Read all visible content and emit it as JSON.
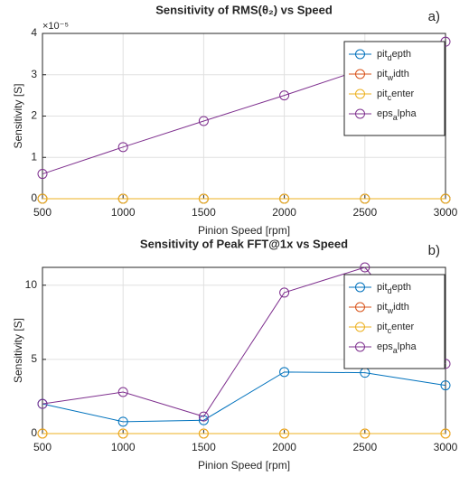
{
  "chart_data": [
    {
      "type": "line",
      "title": "Sensitivity of RMS(θ₂) vs Speed",
      "corner_label": "a)",
      "x_label": "Pinion Speed [rpm]",
      "y_label": "Sensitivity [S]",
      "y_exponent": "×10⁻⁵",
      "x": [
        500,
        1000,
        1500,
        2000,
        2500,
        3000
      ],
      "xlim": [
        500,
        3000
      ],
      "xticks": [
        500,
        1000,
        1500,
        2000,
        2500,
        3000
      ],
      "ylim": [
        0,
        4
      ],
      "yticks": [
        0,
        1,
        2,
        3,
        4
      ],
      "grid": true,
      "legend": "northeast",
      "series": [
        {
          "name": "pit_depth",
          "color": "#0072bd",
          "values": [
            0,
            0,
            0,
            0,
            0,
            0
          ]
        },
        {
          "name": "pit_width",
          "color": "#d95319",
          "values": [
            0,
            0,
            0,
            0,
            0,
            0
          ]
        },
        {
          "name": "pit_center",
          "color": "#edb120",
          "values": [
            0,
            0,
            0,
            0,
            0,
            0
          ]
        },
        {
          "name": "eps_alpha",
          "color": "#7e2f8e",
          "values": [
            0.6,
            1.25,
            1.88,
            2.5,
            3.15,
            3.8
          ]
        }
      ]
    },
    {
      "type": "line",
      "title": "Sensitivity of Peak FFT@1x vs Speed",
      "corner_label": "b)",
      "x_label": "Pinion Speed [rpm]",
      "y_label": "Sensitivity [S]",
      "x": [
        500,
        1000,
        1500,
        2000,
        2500,
        3000
      ],
      "xlim": [
        500,
        3000
      ],
      "xticks": [
        500,
        1000,
        1500,
        2000,
        2500,
        3000
      ],
      "ylim": [
        0,
        11.2
      ],
      "yticks": [
        0,
        5,
        10
      ],
      "grid": true,
      "legend": "northeast",
      "series": [
        {
          "name": "pit_depth",
          "color": "#0072bd",
          "values": [
            2.0,
            0.8,
            0.9,
            4.15,
            4.1,
            3.25
          ]
        },
        {
          "name": "pit_width",
          "color": "#d95319",
          "values": [
            0,
            0,
            0,
            0,
            0,
            0
          ]
        },
        {
          "name": "pit_center",
          "color": "#edb120",
          "values": [
            0,
            0,
            0,
            0,
            0,
            0
          ]
        },
        {
          "name": "eps_alpha",
          "color": "#7e2f8e",
          "values": [
            2.0,
            2.8,
            1.15,
            9.5,
            11.2,
            4.7
          ]
        }
      ]
    }
  ]
}
